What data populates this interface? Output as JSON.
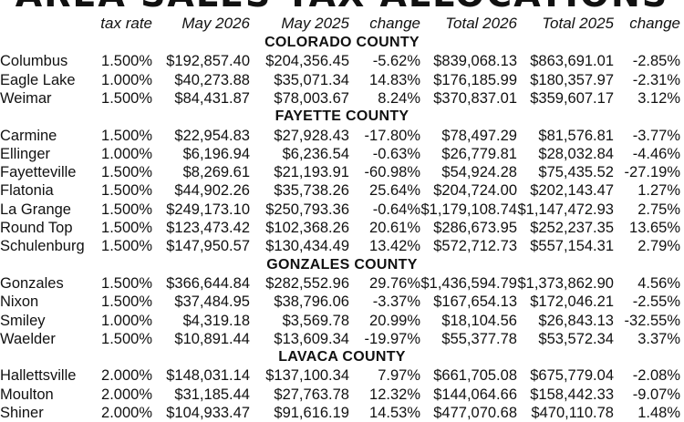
{
  "title": "AREA SALES TAX ALLOCATIONS",
  "headers": [
    "tax rate",
    "May 2026",
    "May 2025",
    "change",
    "Total 2026",
    "Total 2025",
    "change"
  ],
  "groups": [
    {
      "name": "COLORADO COUNTY",
      "rows": [
        [
          "Columbus",
          "1.500%",
          "$192,857.40",
          "$204,356.45",
          "-5.62%",
          "$839,068.13",
          "$863,691.01",
          "-2.85%"
        ],
        [
          "Eagle Lake",
          "1.000%",
          "$40,273.88",
          "$35,071.34",
          "14.83%",
          "$176,185.99",
          "$180,357.97",
          "-2.31%"
        ],
        [
          "Weimar",
          "1.500%",
          "$84,431.87",
          "$78,003.67",
          "8.24%",
          "$370,837.01",
          "$359,607.17",
          "3.12%"
        ]
      ]
    },
    {
      "name": "FAYETTE COUNTY",
      "rows": [
        [
          "Carmine",
          "1.500%",
          "$22,954.83",
          "$27,928.43",
          "-17.80%",
          "$78,497.29",
          "$81,576.81",
          "-3.77%"
        ],
        [
          "Ellinger",
          "1.000%",
          "$6,196.94",
          "$6,236.54",
          "-0.63%",
          "$26,779.81",
          "$28,032.84",
          "-4.46%"
        ],
        [
          "Fayetteville",
          "1.500%",
          "$8,269.61",
          "$21,193.91",
          "-60.98%",
          "$54,924.28",
          "$75,435.52",
          "-27.19%"
        ],
        [
          "Flatonia",
          "1.500%",
          "$44,902.26",
          "$35,738.26",
          "25.64%",
          "$204,724.00",
          "$202,143.47",
          "1.27%"
        ],
        [
          "La Grange",
          "1.500%",
          "$249,173.10",
          "$250,793.36",
          "-0.64%",
          "$1,179,108.74",
          "$1,147,472.93",
          "2.75%"
        ],
        [
          "Round Top",
          "1.500%",
          "$123,473.42",
          "$102,368.26",
          "20.61%",
          "$286,673.95",
          "$252,237.35",
          "13.65%"
        ],
        [
          "Schulenburg",
          "1.500%",
          "$147,950.57",
          "$130,434.49",
          "13.42%",
          "$572,712.73",
          "$557,154.31",
          "2.79%"
        ]
      ]
    },
    {
      "name": "GONZALES COUNTY",
      "rows": [
        [
          "Gonzales",
          "1.500%",
          "$366,644.84",
          "$282,552.96",
          "29.76%",
          "$1,436,594.79",
          "$1,373,862.90",
          "4.56%"
        ],
        [
          "Nixon",
          "1.500%",
          "$37,484.95",
          "$38,796.06",
          "-3.37%",
          "$167,654.13",
          "$172,046.21",
          "-2.55%"
        ],
        [
          "Smiley",
          "1.000%",
          "$4,319.18",
          "$3,569.78",
          "20.99%",
          "$18,104.56",
          "$26,843.13",
          "-32.55%"
        ],
        [
          "Waelder",
          "1.500%",
          "$10,891.44",
          "$13,609.34",
          "-19.97%",
          "$55,377.78",
          "$53,572.34",
          "3.37%"
        ]
      ]
    },
    {
      "name": "LAVACA COUNTY",
      "rows": [
        [
          "Hallettsville",
          "2.000%",
          "$148,031.14",
          "$137,100.34",
          "7.97%",
          "$661,705.08",
          "$675,779.04",
          "-2.08%"
        ],
        [
          "Moulton",
          "2.000%",
          "$31,185.44",
          "$27,763.78",
          "12.32%",
          "$144,064.66",
          "$158,442.33",
          "-9.07%"
        ],
        [
          "Shiner",
          "2.000%",
          "$104,933.47",
          "$91,616.19",
          "14.53%",
          "$477,070.68",
          "$470,110.78",
          "1.48%"
        ]
      ]
    }
  ]
}
